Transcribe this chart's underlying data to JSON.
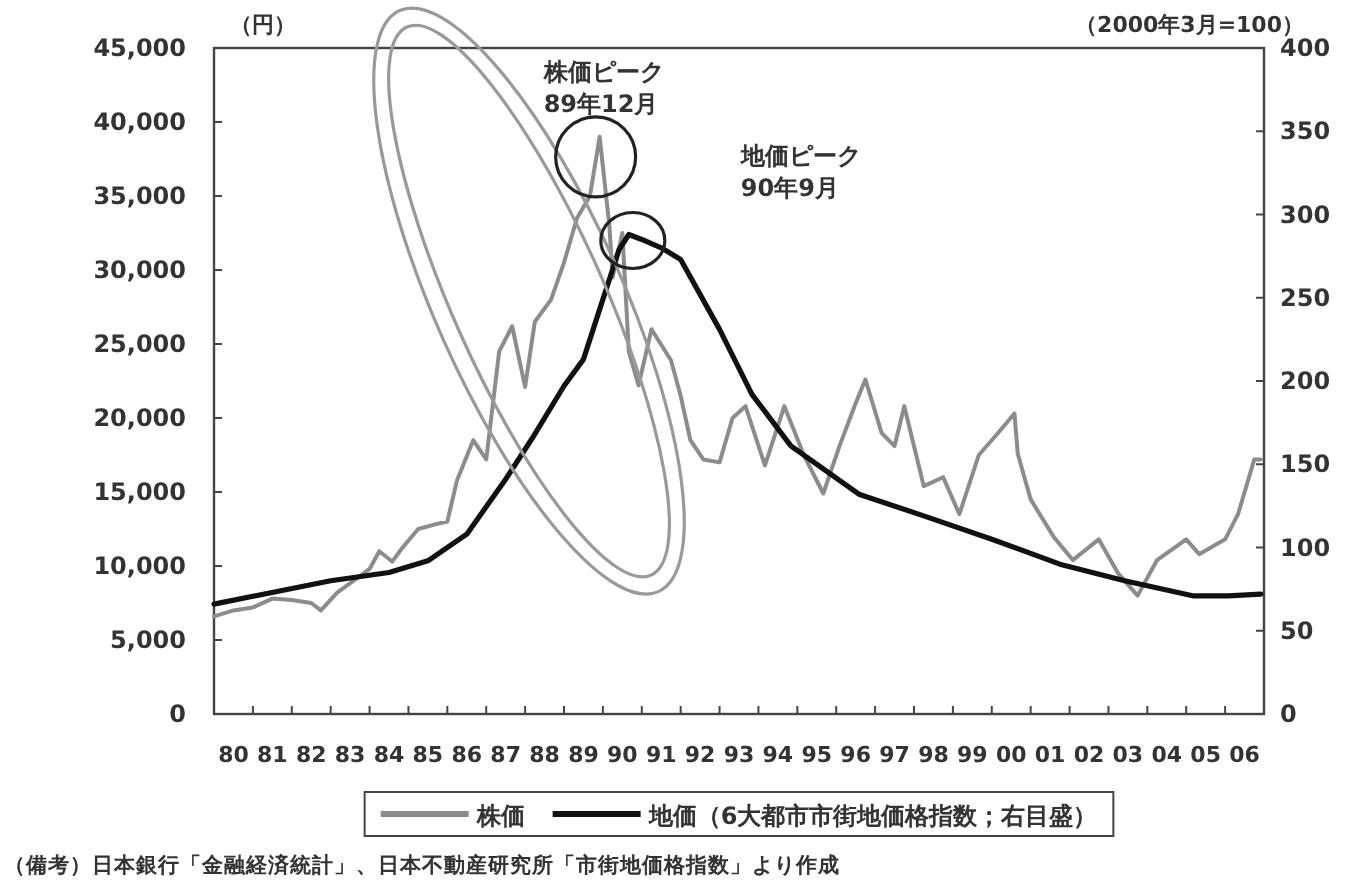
{
  "chart_data": {
    "type": "line",
    "ylabel": "（円）",
    "y2label": "（2000年3月=100）",
    "xlim": [
      "1980-01-01",
      "2007-01-01"
    ],
    "xticks": [
      {
        "value": "1980-07-01",
        "label": "80"
      },
      {
        "value": "1981-07-01",
        "label": "81"
      },
      {
        "value": "1982-07-01",
        "label": "82"
      },
      {
        "value": "1983-07-01",
        "label": "83"
      },
      {
        "value": "1984-07-01",
        "label": "84"
      },
      {
        "value": "1985-07-01",
        "label": "85"
      },
      {
        "value": "1986-07-01",
        "label": "86"
      },
      {
        "value": "1987-07-01",
        "label": "87"
      },
      {
        "value": "1988-07-01",
        "label": "88"
      },
      {
        "value": "1989-07-01",
        "label": "89"
      },
      {
        "value": "1990-07-01",
        "label": "90"
      },
      {
        "value": "1991-07-01",
        "label": "91"
      },
      {
        "value": "1992-07-01",
        "label": "92"
      },
      {
        "value": "1993-07-01",
        "label": "93"
      },
      {
        "value": "1994-07-01",
        "label": "94"
      },
      {
        "value": "1995-07-01",
        "label": "95"
      },
      {
        "value": "1996-07-01",
        "label": "96"
      },
      {
        "value": "1997-07-01",
        "label": "97"
      },
      {
        "value": "1998-07-01",
        "label": "98"
      },
      {
        "value": "1999-07-01",
        "label": "99"
      },
      {
        "value": "2000-07-01",
        "label": "00"
      },
      {
        "value": "2001-07-01",
        "label": "01"
      },
      {
        "value": "2002-07-01",
        "label": "02"
      },
      {
        "value": "2003-07-01",
        "label": "03"
      },
      {
        "value": "2004-07-01",
        "label": "04"
      },
      {
        "value": "2005-07-01",
        "label": "05"
      },
      {
        "value": "2006-07-01",
        "label": "06"
      },
      {
        "value": "1981",
        "label": null
      },
      {
        "value": "1982",
        "label": null
      },
      {
        "value": "1983",
        "label": null
      },
      {
        "value": "1984",
        "label": null
      },
      {
        "value": "1985",
        "label": null
      },
      {
        "value": "1986",
        "label": null
      },
      {
        "value": "1987",
        "label": null
      },
      {
        "value": "1988",
        "label": null
      },
      {
        "value": "1989",
        "label": null
      },
      {
        "value": "1990",
        "label": null
      },
      {
        "value": "1991",
        "label": null
      },
      {
        "value": "1992",
        "label": null
      },
      {
        "value": "1993",
        "label": null
      },
      {
        "value": "1994",
        "label": null
      },
      {
        "value": "1995",
        "label": null
      },
      {
        "value": "1996",
        "label": null
      },
      {
        "value": "1997",
        "label": null
      },
      {
        "value": "1998",
        "label": null
      },
      {
        "value": "1999",
        "label": null
      },
      {
        "value": "2000",
        "label": null
      },
      {
        "value": "2001",
        "label": null
      },
      {
        "value": "2002",
        "label": null
      },
      {
        "value": "2003",
        "label": null
      },
      {
        "value": "2004",
        "label": null
      },
      {
        "value": "2005",
        "label": null
      },
      {
        "value": "2006",
        "label": null
      }
    ],
    "ylim": [
      0,
      45000
    ],
    "yticks": [
      0,
      {
        "value": 5000,
        "label": "5,000"
      },
      {
        "value": 10000,
        "label": "10,000"
      },
      {
        "value": 15000,
        "label": "15,000"
      },
      {
        "value": 20000,
        "label": "20,000"
      },
      {
        "value": 25000,
        "label": "25,000"
      },
      {
        "value": 30000,
        "label": "30,000"
      },
      {
        "value": 35000,
        "label": "35,000"
      },
      {
        "value": 40000,
        "label": "40,000"
      },
      {
        "value": 45000,
        "label": "45,000"
      }
    ],
    "y2lim": [
      0,
      400
    ],
    "y2ticks": [
      0,
      50,
      100,
      150,
      200,
      250,
      300,
      350,
      400
    ],
    "grid": false,
    "legend": "bottom",
    "line_style": "solid",
    "marker": "none",
    "series": [
      {
        "name": "株価",
        "color": "#8c8c8c",
        "x": [
          "1980-01",
          "1980-07",
          "1981-01",
          "1981-07",
          "1982-01",
          "1982-07",
          "1982-10",
          "1983-03",
          "1983-08",
          "1984-01",
          "1984-04",
          "1984-08",
          "1984-11",
          "1985-04",
          "1985-09",
          "1986-01",
          "1986-04",
          "1986-09",
          "1987-01",
          "1987-05",
          "1987-09",
          "1988-01",
          "1988-04",
          "1988-09",
          "1989-01",
          "1989-05",
          "1989-09",
          "1989-12",
          "1990-03",
          "1990-04",
          "1990-07",
          "1990-09",
          "1990-12",
          "1991-04",
          "1991-10",
          "1992-01",
          "1992-04",
          "1992-08",
          "1993-01",
          "1993-05",
          "1993-09",
          "1994-03",
          "1994-09",
          "1995-03",
          "1995-09",
          "1996-02",
          "1996-07",
          "1996-10",
          "1997-03",
          "1997-07",
          "1997-10",
          "1998-04",
          "1998-10",
          "1999-03",
          "1999-09",
          "2000-03",
          "2000-08",
          "2000-09",
          "2001-01",
          "2001-08",
          "2002-02",
          "2002-10",
          "2003-04",
          "2003-10",
          "2004-04",
          "2005-01",
          "2005-05",
          "2006-01",
          "2006-05",
          "2006-10",
          "2006-12"
        ],
        "values": [
          6600,
          7000,
          7200,
          7800,
          7700,
          7500,
          7000,
          8200,
          9000,
          9800,
          11000,
          10300,
          11200,
          12500,
          12800,
          13000,
          15800,
          18500,
          17200,
          24500,
          26200,
          22100,
          26500,
          28000,
          30500,
          33500,
          35000,
          39000,
          33000,
          29500,
          32500,
          24500,
          22200,
          26000,
          23900,
          21500,
          18500,
          17200,
          17000,
          20000,
          20800,
          16800,
          20800,
          17500,
          14900,
          18100,
          21000,
          22600,
          19000,
          18100,
          20800,
          15400,
          16000,
          13500,
          17500,
          19000,
          20300,
          17600,
          14500,
          12000,
          10400,
          11800,
          9500,
          8000,
          10400,
          11800,
          10800,
          11800,
          13500,
          17200,
          17200
        ]
      },
      {
        "name": "地価（6大都市市街地価格指数；右目盛）",
        "color": "#111111",
        "axis": "y2",
        "x": [
          "1980-01",
          "1983-01",
          "1984-07",
          "1985-07",
          "1986-07",
          "1987-07",
          "1988-03",
          "1989-01",
          "1989-07",
          "1990-01",
          "1990-06",
          "1990-09",
          "1991-01",
          "1991-07",
          "1992-01",
          "1993-01",
          "1993-11",
          "1994-11",
          "1996-08",
          "1998-04",
          "2000-01",
          "2001-10",
          "2003-06",
          "2005-03",
          "2006-02",
          "2006-12"
        ],
        "values": [
          66,
          80,
          85,
          92,
          108,
          141,
          165,
          197,
          213,
          249,
          279,
          288,
          285,
          280,
          273,
          231,
          192,
          161,
          132,
          119,
          105,
          90,
          80,
          71,
          71,
          72
        ]
      }
    ],
    "annotations": [
      "株価ピーク\n89年12月",
      "地価ピーク\n90年9月",
      "（備考）日本銀行「金融経済統計」、日本不動産研究所「市街地価格指数」より作成"
    ]
  }
}
